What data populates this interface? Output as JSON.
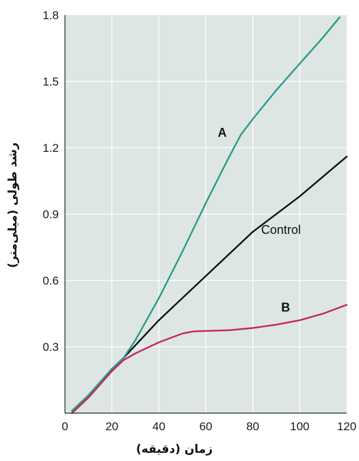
{
  "chart_data": {
    "type": "line",
    "title": "",
    "xlabel": "زمان (دقیقه)",
    "ylabel": "رشد طولی (میلی‌متر)",
    "xlim": [
      0,
      120
    ],
    "ylim": [
      0,
      1.8
    ],
    "x_ticks": [
      "0",
      "20",
      "40",
      "60",
      "80",
      "100",
      "120"
    ],
    "y_ticks": [
      "0.3",
      "0.6",
      "0.9",
      "1.2",
      "1.5",
      "1.8"
    ],
    "grid": true,
    "background": "#dde6e2",
    "series": [
      {
        "name": "A",
        "color": "#2a9a8e",
        "points": [
          [
            3,
            0.01
          ],
          [
            10,
            0.08
          ],
          [
            15,
            0.14
          ],
          [
            20,
            0.2
          ],
          [
            25,
            0.25
          ],
          [
            30,
            0.33
          ],
          [
            40,
            0.52
          ],
          [
            50,
            0.73
          ],
          [
            60,
            0.95
          ],
          [
            70,
            1.16
          ],
          [
            75,
            1.26
          ],
          [
            80,
            1.33
          ],
          [
            90,
            1.46
          ],
          [
            100,
            1.58
          ],
          [
            110,
            1.7
          ],
          [
            117,
            1.79
          ]
        ]
      },
      {
        "name": "Control",
        "color": "#111111",
        "points": [
          [
            3,
            0.01
          ],
          [
            10,
            0.08
          ],
          [
            15,
            0.14
          ],
          [
            20,
            0.2
          ],
          [
            25,
            0.25
          ],
          [
            40,
            0.42
          ],
          [
            60,
            0.62
          ],
          [
            80,
            0.82
          ],
          [
            100,
            0.98
          ],
          [
            120,
            1.16
          ]
        ]
      },
      {
        "name": "B",
        "color": "#c8245e",
        "points": [
          [
            3,
            0.0
          ],
          [
            10,
            0.07
          ],
          [
            15,
            0.13
          ],
          [
            20,
            0.19
          ],
          [
            25,
            0.24
          ],
          [
            30,
            0.27
          ],
          [
            40,
            0.32
          ],
          [
            50,
            0.36
          ],
          [
            55,
            0.37
          ],
          [
            70,
            0.375
          ],
          [
            80,
            0.385
          ],
          [
            90,
            0.4
          ],
          [
            100,
            0.42
          ],
          [
            110,
            0.45
          ],
          [
            120,
            0.49
          ]
        ]
      }
    ],
    "annotations": [
      {
        "text": "A",
        "x": 67,
        "y": 1.25,
        "bold": true
      },
      {
        "text": "Control",
        "x": 92,
        "y": 0.81,
        "bold": false
      },
      {
        "text": "B",
        "x": 94,
        "y": 0.46,
        "bold": true
      }
    ]
  }
}
